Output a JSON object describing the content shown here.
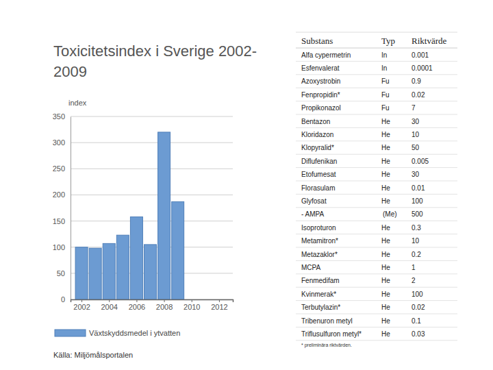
{
  "chart_data": {
    "type": "bar",
    "title": "Toxicitetsindex i Sverige 2002-2009",
    "ylabel": "index",
    "x": [
      2002,
      2003,
      2004,
      2005,
      2006,
      2007,
      2008,
      2009
    ],
    "series": [
      {
        "name": "Växtskyddsmedel i ytvatten",
        "color": "#6c9bd2",
        "values": [
          100,
          98,
          107,
          123,
          158,
          105,
          320,
          187
        ]
      }
    ],
    "xlim": [
      2001.2,
      2013
    ],
    "xticks": [
      2002,
      2004,
      2006,
      2008,
      2010,
      2012
    ],
    "ylim": [
      0,
      350
    ],
    "yticks": [
      0,
      50,
      100,
      150,
      200,
      250,
      300,
      350
    ],
    "grid": true,
    "legend": "bottom"
  },
  "slide": {
    "source": "Källa: Miljömålsportalen"
  },
  "table": {
    "columns": [
      "Substans",
      "Typ",
      "Riktvärde"
    ],
    "rows": [
      [
        "Alfa cypermetrin",
        "In",
        "0.001"
      ],
      [
        "Esfenvalerat",
        "In",
        "0.0001"
      ],
      [
        "Azoxystrobin",
        "Fu",
        "0.9"
      ],
      [
        "Fenpropidin*",
        "Fu",
        "0.02"
      ],
      [
        "Propikonazol",
        "Fu",
        "7"
      ],
      [
        "Bentazon",
        "He",
        "30"
      ],
      [
        "Kloridazon",
        "He",
        "10"
      ],
      [
        "Klopyralid*",
        "He",
        "50"
      ],
      [
        "Diflufenikan",
        "He",
        "0.005"
      ],
      [
        "Etofumesat",
        "He",
        "30"
      ],
      [
        "Florasulam",
        "He",
        "0.01"
      ],
      [
        "Glyfosat",
        "He",
        "100"
      ],
      [
        "- AMPA",
        "(Me)",
        "500"
      ],
      [
        "Isoproturon",
        "He",
        "0.3"
      ],
      [
        "Metamitron*",
        "He",
        "10"
      ],
      [
        "Metazaklor*",
        "He",
        "0.2"
      ],
      [
        "MCPA",
        "He",
        "1"
      ],
      [
        "Fenmedifam",
        "He",
        "2"
      ],
      [
        "Kvinmerak*",
        "He",
        "100"
      ],
      [
        "Terbutylazin*",
        "He",
        "0.02"
      ],
      [
        "Tribenuron metyl",
        "He",
        "0.1"
      ],
      [
        "Triflusulfuron metyl*",
        "He",
        "0.03"
      ]
    ],
    "footnote": "* preliminära riktvärden."
  }
}
